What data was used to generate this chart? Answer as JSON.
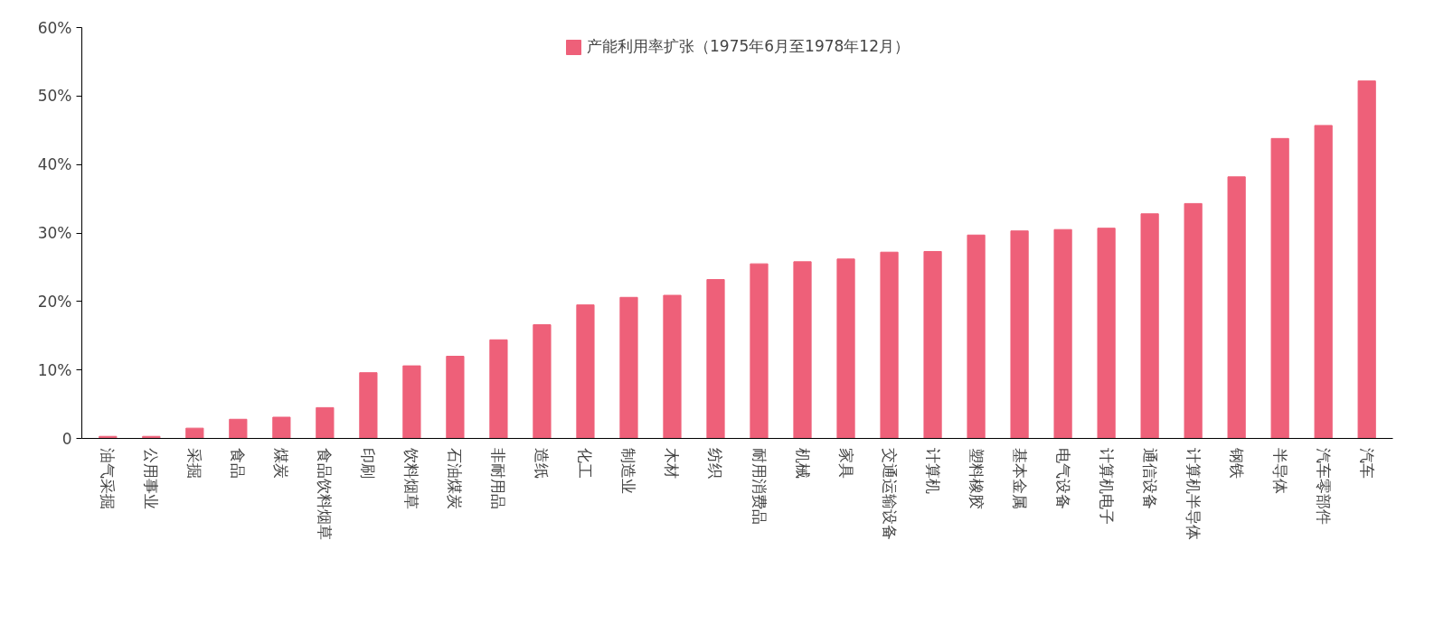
{
  "chart_data": {
    "type": "bar",
    "categories": [
      "油气采掘",
      "公用事业",
      "采掘",
      "食品",
      "煤炭",
      "食品饮料烟草",
      "印刷",
      "饮料烟草",
      "石油煤炭",
      "非耐用品",
      "造纸",
      "化工",
      "制造业",
      "木材",
      "纺织",
      "耐用消费品",
      "机械",
      "家具",
      "交通运输设备",
      "计算机",
      "塑料橡胶",
      "基本金属",
      "电气设备",
      "计算机电子",
      "通信设备",
      "计算机半导体",
      "钢铁",
      "半导体",
      "汽车零部件",
      "汽车"
    ],
    "series": [
      {
        "name": "产能利用率扩张（1975年6月至1978年12月）",
        "color": "#ee6079",
        "values": [
          0.3,
          0.3,
          1.5,
          2.8,
          3.1,
          4.5,
          9.6,
          10.6,
          12.0,
          14.4,
          16.6,
          19.5,
          20.6,
          20.9,
          23.2,
          25.5,
          25.8,
          26.2,
          27.2,
          27.3,
          29.7,
          30.3,
          30.5,
          30.7,
          32.8,
          34.3,
          38.2,
          43.8,
          45.7,
          52.2
        ]
      }
    ],
    "ylim": [
      0,
      60
    ],
    "yticks": [
      {
        "value": 0,
        "label": "0"
      },
      {
        "value": 10,
        "label": "10%"
      },
      {
        "value": 20,
        "label": "20%"
      },
      {
        "value": 30,
        "label": "30%"
      },
      {
        "value": 40,
        "label": "40%"
      },
      {
        "value": 50,
        "label": "50%"
      },
      {
        "value": 60,
        "label": "60%"
      }
    ],
    "grid": false,
    "legend": "top"
  }
}
